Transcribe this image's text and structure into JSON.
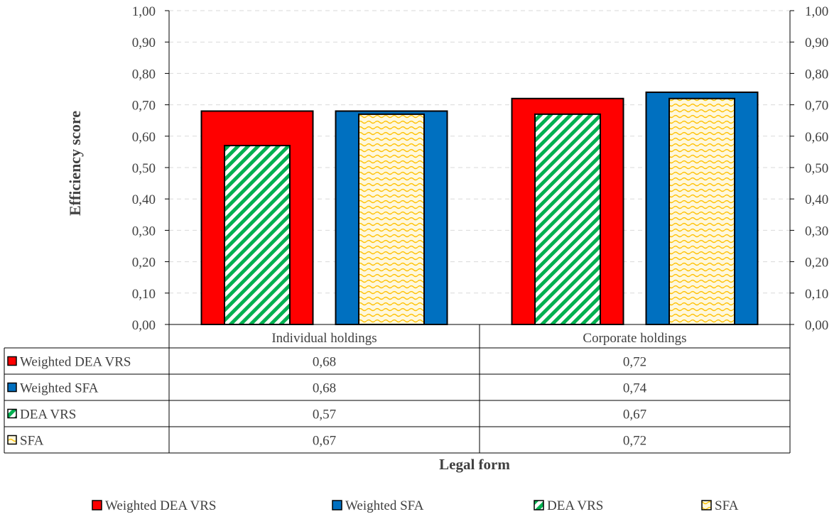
{
  "chart_data": {
    "type": "bar",
    "categories": [
      "Individual holdings",
      "Corporate holdings"
    ],
    "series": [
      {
        "name": "Weighted DEA VRS",
        "values": [
          0.68,
          0.72
        ],
        "color": "#ff0000",
        "pattern": "solid"
      },
      {
        "name": "Weighted SFA",
        "values": [
          0.68,
          0.74
        ],
        "color": "#0070c0",
        "pattern": "solid"
      },
      {
        "name": "DEA VRS",
        "values": [
          0.57,
          0.67
        ],
        "color": "#00b050",
        "pattern": "diagonal-stripes"
      },
      {
        "name": "SFA",
        "values": [
          0.67,
          0.72
        ],
        "color": "#ffd966",
        "pattern": "wavy"
      }
    ],
    "table_values": [
      [
        "0,68",
        "0,72"
      ],
      [
        "0,68",
        "0,74"
      ],
      [
        "0,57",
        "0,67"
      ],
      [
        "0,67",
        "0,72"
      ]
    ],
    "ylabel": "Efficiency score",
    "xlabel": "Legal form",
    "ylim": [
      0,
      1
    ],
    "y_ticks": [
      "0,00",
      "0,10",
      "0,20",
      "0,30",
      "0,40",
      "0,50",
      "0,60",
      "0,70",
      "0,80",
      "0,90",
      "1,00"
    ],
    "secondary_y_axis": true,
    "grid": "dashed horizontal",
    "legend_position": "bottom",
    "data_table": true
  }
}
